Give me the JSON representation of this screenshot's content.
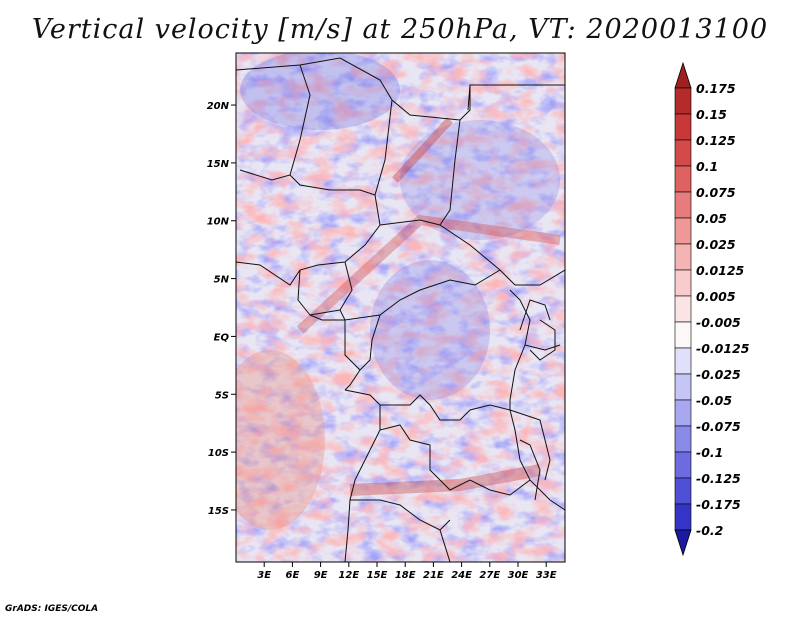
{
  "title": "Vertical velocity [m/s] at 250hPa, VT: 2020013100",
  "credit": "GrADS: IGES/COLA",
  "map": {
    "region": "Central Africa",
    "lat_range": [
      -19.5,
      24.5
    ],
    "lon_range": [
      0,
      35
    ],
    "lat_ticks": [
      {
        "value": 20,
        "label": "20N"
      },
      {
        "value": 15,
        "label": "15N"
      },
      {
        "value": 10,
        "label": "10N"
      },
      {
        "value": 5,
        "label": "5N"
      },
      {
        "value": 0,
        "label": "EQ"
      },
      {
        "value": -5,
        "label": "5S"
      },
      {
        "value": -10,
        "label": "10S"
      },
      {
        "value": -15,
        "label": "15S"
      }
    ],
    "lon_ticks": [
      {
        "value": 3,
        "label": "3E"
      },
      {
        "value": 6,
        "label": "6E"
      },
      {
        "value": 9,
        "label": "9E"
      },
      {
        "value": 12,
        "label": "12E"
      },
      {
        "value": 15,
        "label": "15E"
      },
      {
        "value": 18,
        "label": "18E"
      },
      {
        "value": 21,
        "label": "21E"
      },
      {
        "value": 24,
        "label": "24E"
      },
      {
        "value": 27,
        "label": "27E"
      },
      {
        "value": 30,
        "label": "30E"
      },
      {
        "value": 33,
        "label": "33E"
      }
    ]
  },
  "colorbar": {
    "levels": [
      {
        "label": "0.175",
        "color": "#b52a2a"
      },
      {
        "label": "0.15",
        "color": "#c83838"
      },
      {
        "label": "0.125",
        "color": "#d44a4a"
      },
      {
        "label": "0.1",
        "color": "#de6262"
      },
      {
        "label": "0.075",
        "color": "#e67c7c"
      },
      {
        "label": "0.05",
        "color": "#ee9898"
      },
      {
        "label": "0.025",
        "color": "#f4b4b4"
      },
      {
        "label": "0.0125",
        "color": "#f8cccc"
      },
      {
        "label": "0.005",
        "color": "#fbe4e4"
      },
      {
        "label": "-0.005",
        "color": "#fdf8f8"
      },
      {
        "label": "-0.0125",
        "color": "#e0e0fa"
      },
      {
        "label": "-0.025",
        "color": "#c6c6f6"
      },
      {
        "label": "-0.05",
        "color": "#a8a8f0"
      },
      {
        "label": "-0.075",
        "color": "#8a8ae8"
      },
      {
        "label": "-0.1",
        "color": "#6c6ce0"
      },
      {
        "label": "-0.125",
        "color": "#5050d6"
      },
      {
        "label": "-0.175",
        "color": "#3434c6"
      },
      {
        "label": "-0.2",
        "color": "#2020b0"
      }
    ],
    "top_color": "#a02020",
    "bottom_color": "#1a1aa0"
  }
}
